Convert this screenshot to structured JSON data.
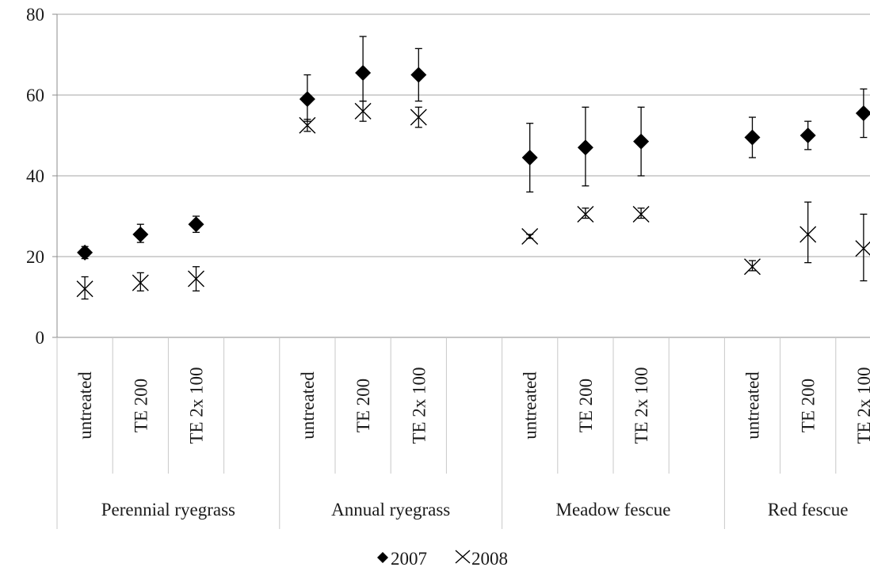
{
  "chart_data": {
    "type": "scatter",
    "ylim": [
      0,
      80
    ],
    "yticks": [
      0,
      20,
      40,
      60,
      80
    ],
    "grid": "horizontal",
    "legend_position": "bottom",
    "groups": [
      {
        "label": "Perennial ryegrass",
        "treatments": [
          "untreated",
          "TE 200",
          "TE 2x 100",
          ""
        ]
      },
      {
        "label": "Annual ryegrass",
        "treatments": [
          "untreated",
          "TE 200",
          "TE 2x 100",
          ""
        ]
      },
      {
        "label": "Meadow fescue",
        "treatments": [
          "untreated",
          "TE 200",
          "TE 2x 100",
          ""
        ]
      },
      {
        "label": "Red fescue",
        "treatments": [
          "untreated",
          "TE 200",
          "TE 2x 100"
        ]
      }
    ],
    "categories": [
      "Perennial ryegrass / untreated",
      "Perennial ryegrass / TE 200",
      "Perennial ryegrass / TE 2x 100",
      "",
      "Annual ryegrass / untreated",
      "Annual ryegrass / TE 200",
      "Annual ryegrass / TE 2x 100",
      "",
      "Meadow fescue / untreated",
      "Meadow fescue / TE 200",
      "Meadow fescue / TE 2x 100",
      "",
      "Red fescue / untreated",
      "Red fescue / TE 200",
      "Red fescue / TE 2x 100"
    ],
    "series": [
      {
        "name": "2007",
        "marker": "diamond",
        "color": "#000000",
        "values": [
          21,
          25.5,
          28,
          null,
          59,
          65.5,
          65,
          null,
          44.5,
          47,
          48.5,
          null,
          49.5,
          50,
          55.5
        ],
        "err_low": [
          19.5,
          23.5,
          26,
          null,
          53.5,
          58.5,
          58.5,
          null,
          36,
          37.5,
          40,
          null,
          44.5,
          46.5,
          49.5
        ],
        "err_high": [
          22.5,
          28,
          30,
          null,
          65,
          74.5,
          71.5,
          null,
          53,
          57,
          57,
          null,
          54.5,
          53.5,
          61.5
        ]
      },
      {
        "name": "2008",
        "marker": "x",
        "color": "#000000",
        "values": [
          12,
          13.5,
          14.5,
          null,
          52.5,
          56,
          54.5,
          null,
          25,
          30.5,
          30.5,
          null,
          17.5,
          25.5,
          22
        ],
        "err_low": [
          9.5,
          11.5,
          11.5,
          null,
          51,
          53.5,
          52,
          null,
          24.5,
          29.5,
          29.5,
          null,
          16.5,
          18.5,
          14
        ],
        "err_high": [
          15,
          16,
          17.5,
          null,
          54,
          58.5,
          57,
          null,
          25.5,
          32,
          32,
          null,
          19,
          33.5,
          30.5
        ]
      }
    ]
  }
}
